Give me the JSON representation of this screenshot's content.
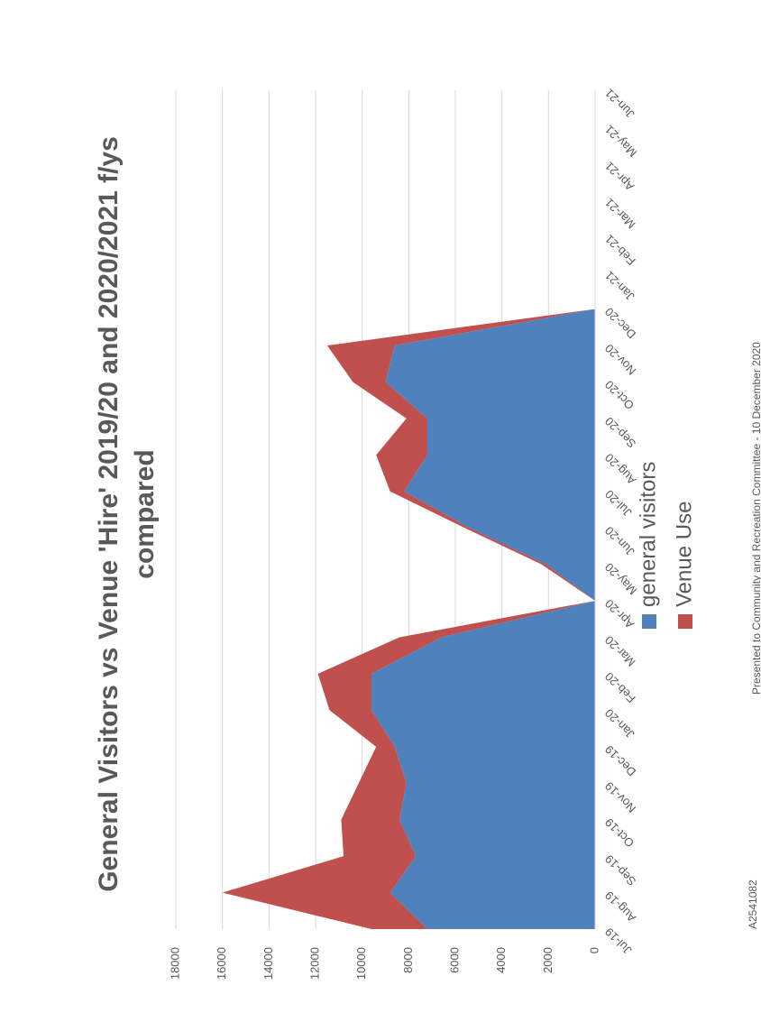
{
  "chart_data": {
    "type": "stacked_area",
    "title": "General Visitors vs Venue 'Hire' 2019/20 and 2020/2021 f/ys compared",
    "categories": [
      "Jul-19",
      "Aug-19",
      "Sep-19",
      "Oct-19",
      "Nov-19",
      "Dec-19",
      "Jan-20",
      "Feb-20",
      "Mar-20",
      "Apr-20",
      "May-20",
      "Jun-20",
      "Jul-20",
      "Aug-20",
      "Sep-20",
      "Oct-20",
      "Nov-20",
      "Dec-20",
      "Jan-21",
      "Feb-21",
      "Mar-21",
      "Apr-21",
      "May-21",
      "Jun-21"
    ],
    "series": [
      {
        "name": "general visitors",
        "color": "#4f81bd",
        "values": [
          7200,
          8800,
          7700,
          8400,
          8100,
          8600,
          9600,
          9600,
          6600,
          0,
          2100,
          5400,
          8200,
          7200,
          7200,
          9000,
          8600,
          0,
          null,
          null,
          null,
          null,
          null,
          null
        ]
      },
      {
        "name": "Venue Use",
        "color": "#c0504d",
        "values": [
          2400,
          7200,
          3100,
          2500,
          2050,
          800,
          1800,
          2300,
          1800,
          0,
          200,
          200,
          600,
          2200,
          900,
          1400,
          2900,
          0,
          null,
          null,
          null,
          null,
          null,
          null
        ]
      }
    ],
    "ylim": [
      0,
      18000
    ],
    "yticks": [
      0,
      2000,
      4000,
      6000,
      8000,
      10000,
      12000,
      14000,
      16000,
      18000
    ],
    "grid": true
  },
  "footer": {
    "left": "A2541082",
    "center": "Presented to Community and Recreation Committee - 10 December 2020"
  }
}
